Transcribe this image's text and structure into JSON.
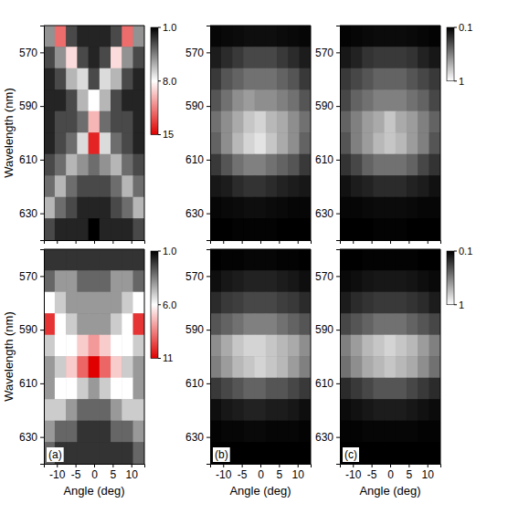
{
  "chart_data": [
    {
      "type": "heatmap",
      "ylabel": "Wavelength (nm)",
      "tick_labels": "y",
      "x": [
        -12,
        -9,
        -6,
        -3,
        0,
        3,
        6,
        9,
        12
      ],
      "y": [
        564,
        572,
        580,
        588,
        596,
        604,
        612,
        620,
        628,
        636
      ],
      "xlim": [
        -13.5,
        13.5
      ],
      "ylim": [
        560,
        640
      ],
      "xticks": [
        -10,
        -5,
        0,
        5,
        10
      ],
      "yticks": [
        570,
        590,
        610,
        630
      ],
      "values": [
        [
          5,
          12,
          3,
          2,
          2,
          2,
          3,
          12,
          5
        ],
        [
          3,
          5,
          9,
          3,
          2,
          3,
          9,
          5,
          3
        ],
        [
          2,
          3,
          6,
          7,
          3,
          7,
          6,
          3,
          2
        ],
        [
          2,
          2,
          3,
          6,
          8,
          6,
          3,
          2,
          2
        ],
        [
          2,
          3,
          3,
          4,
          10,
          4,
          3,
          3,
          2
        ],
        [
          2,
          3,
          4,
          7,
          14,
          7,
          4,
          3,
          2
        ],
        [
          3,
          4,
          6,
          5,
          4,
          5,
          6,
          4,
          3
        ],
        [
          4,
          6,
          4,
          3,
          3,
          3,
          4,
          6,
          4
        ],
        [
          6,
          4,
          3,
          2,
          2,
          2,
          3,
          4,
          6
        ],
        [
          3,
          2,
          2,
          2,
          1,
          2,
          2,
          2,
          3
        ]
      ],
      "colorbar": {
        "range": [
          1,
          15
        ],
        "ticks": [
          {
            "value": 1,
            "label": "1.0"
          },
          {
            "value": 8,
            "label": "8.0"
          },
          15
        ]
      }
    },
    {
      "type": "heatmap",
      "tick_labels": "y",
      "x": [
        -12,
        -9,
        -6,
        -3,
        0,
        3,
        6,
        9,
        12
      ],
      "y": [
        564,
        572,
        580,
        588,
        596,
        604,
        612,
        620,
        628,
        636
      ],
      "xlim": [
        -13.5,
        13.5
      ],
      "ylim": [
        560,
        640
      ],
      "xticks": [
        -10,
        -5,
        0,
        5,
        10
      ],
      "yticks": [
        570,
        590,
        610,
        630
      ],
      "values": [
        [
          0.12,
          0.13,
          0.14,
          0.15,
          0.15,
          0.15,
          0.14,
          0.13,
          0.12
        ],
        [
          0.2,
          0.25,
          0.3,
          0.35,
          0.35,
          0.35,
          0.3,
          0.25,
          0.2
        ],
        [
          0.3,
          0.4,
          0.45,
          0.5,
          0.5,
          0.5,
          0.45,
          0.4,
          0.3
        ],
        [
          0.4,
          0.5,
          0.6,
          0.65,
          0.6,
          0.6,
          0.55,
          0.5,
          0.4
        ],
        [
          0.5,
          0.6,
          0.7,
          0.8,
          0.85,
          0.75,
          0.7,
          0.6,
          0.5
        ],
        [
          0.45,
          0.6,
          0.75,
          0.85,
          0.9,
          0.8,
          0.7,
          0.6,
          0.45
        ],
        [
          0.3,
          0.4,
          0.5,
          0.55,
          0.55,
          0.5,
          0.45,
          0.4,
          0.3
        ],
        [
          0.18,
          0.2,
          0.25,
          0.28,
          0.28,
          0.25,
          0.22,
          0.2,
          0.18
        ],
        [
          0.12,
          0.13,
          0.14,
          0.15,
          0.15,
          0.14,
          0.13,
          0.12,
          0.12
        ],
        [
          0.1,
          0.1,
          0.11,
          0.11,
          0.11,
          0.11,
          0.1,
          0.1,
          0.1
        ]
      ]
    },
    {
      "type": "heatmap",
      "tick_labels": "y",
      "x": [
        -12,
        -9,
        -6,
        -3,
        0,
        3,
        6,
        9,
        12
      ],
      "y": [
        564,
        572,
        580,
        588,
        596,
        604,
        612,
        620,
        628,
        636
      ],
      "xlim": [
        -13.5,
        13.5
      ],
      "ylim": [
        560,
        640
      ],
      "xticks": [
        -10,
        -5,
        0,
        5,
        10
      ],
      "yticks": [
        570,
        590,
        610,
        630
      ],
      "values": [
        [
          0.11,
          0.12,
          0.13,
          0.14,
          0.14,
          0.14,
          0.13,
          0.12,
          0.11
        ],
        [
          0.18,
          0.22,
          0.28,
          0.3,
          0.3,
          0.3,
          0.28,
          0.22,
          0.18
        ],
        [
          0.3,
          0.35,
          0.4,
          0.45,
          0.45,
          0.45,
          0.4,
          0.35,
          0.3
        ],
        [
          0.35,
          0.45,
          0.5,
          0.55,
          0.55,
          0.55,
          0.5,
          0.45,
          0.35
        ],
        [
          0.45,
          0.55,
          0.65,
          0.7,
          0.8,
          0.7,
          0.65,
          0.55,
          0.45
        ],
        [
          0.4,
          0.55,
          0.65,
          0.75,
          0.8,
          0.75,
          0.65,
          0.55,
          0.4
        ],
        [
          0.28,
          0.35,
          0.45,
          0.5,
          0.5,
          0.5,
          0.45,
          0.35,
          0.28
        ],
        [
          0.16,
          0.2,
          0.22,
          0.25,
          0.25,
          0.25,
          0.22,
          0.2,
          0.16
        ],
        [
          0.12,
          0.12,
          0.13,
          0.14,
          0.14,
          0.14,
          0.13,
          0.12,
          0.12
        ],
        [
          0.1,
          0.1,
          0.1,
          0.11,
          0.11,
          0.11,
          0.1,
          0.1,
          0.1
        ]
      ],
      "colorbar": {
        "range": [
          0.1,
          1
        ],
        "ticks": [
          0.1,
          1
        ]
      }
    },
    {
      "type": "heatmap",
      "ylabel": "Wavelength (nm)",
      "xlabel": "Angle (deg)",
      "panel_label": "(a)",
      "x": [
        -12,
        -9,
        -6,
        -3,
        0,
        3,
        6,
        9,
        12
      ],
      "y": [
        564,
        572,
        580,
        588,
        596,
        604,
        612,
        620,
        628,
        636
      ],
      "xlim": [
        -13.5,
        13.5
      ],
      "ylim": [
        560,
        640
      ],
      "xticks": [
        -10,
        -5,
        0,
        5,
        10
      ],
      "yticks": [
        570,
        590,
        610,
        630
      ],
      "values": [
        [
          2,
          2,
          2,
          2,
          2,
          2,
          2,
          2,
          2
        ],
        [
          3,
          4,
          4,
          3,
          3,
          3,
          4,
          4,
          3
        ],
        [
          6,
          5,
          4,
          4,
          4,
          4,
          4,
          5,
          6
        ],
        [
          10,
          6,
          5,
          4,
          4,
          4,
          5,
          6,
          10
        ],
        [
          5,
          6,
          6,
          7,
          8,
          7,
          6,
          6,
          5
        ],
        [
          4,
          5,
          7,
          9,
          11,
          9,
          7,
          5,
          4
        ],
        [
          4,
          6,
          6,
          5,
          4,
          5,
          6,
          6,
          4
        ],
        [
          5,
          5,
          4,
          3,
          3,
          3,
          4,
          5,
          5
        ],
        [
          4,
          3,
          3,
          2,
          2,
          2,
          3,
          3,
          4
        ],
        [
          3,
          2,
          2,
          2,
          2,
          2,
          2,
          2,
          3
        ]
      ],
      "colorbar": {
        "range": [
          1,
          11
        ],
        "ticks": [
          {
            "value": 1,
            "label": "1.0"
          },
          {
            "value": 6,
            "label": "6.0"
          },
          11
        ]
      }
    },
    {
      "type": "heatmap",
      "xlabel": "Angle (deg)",
      "panel_label": "(b)",
      "x": [
        -12,
        -9,
        -6,
        -3,
        0,
        3,
        6,
        9,
        12
      ],
      "y": [
        564,
        572,
        580,
        588,
        596,
        604,
        612,
        620,
        628,
        636
      ],
      "xlim": [
        -13.5,
        13.5
      ],
      "ylim": [
        560,
        640
      ],
      "xticks": [
        -10,
        -5,
        0,
        5,
        10
      ],
      "yticks": [
        570,
        590,
        610,
        630
      ],
      "values": [
        [
          0.1,
          0.11,
          0.11,
          0.12,
          0.12,
          0.12,
          0.11,
          0.11,
          0.1
        ],
        [
          0.15,
          0.18,
          0.2,
          0.22,
          0.22,
          0.22,
          0.2,
          0.18,
          0.15
        ],
        [
          0.25,
          0.3,
          0.32,
          0.35,
          0.35,
          0.35,
          0.32,
          0.3,
          0.25
        ],
        [
          0.4,
          0.45,
          0.5,
          0.55,
          0.55,
          0.55,
          0.5,
          0.45,
          0.4
        ],
        [
          0.6,
          0.7,
          0.8,
          0.85,
          0.85,
          0.8,
          0.75,
          0.7,
          0.6
        ],
        [
          0.55,
          0.65,
          0.75,
          0.8,
          0.85,
          0.8,
          0.75,
          0.65,
          0.55
        ],
        [
          0.3,
          0.35,
          0.4,
          0.45,
          0.45,
          0.4,
          0.4,
          0.35,
          0.3
        ],
        [
          0.15,
          0.18,
          0.2,
          0.22,
          0.22,
          0.2,
          0.2,
          0.18,
          0.15
        ],
        [
          0.11,
          0.12,
          0.12,
          0.13,
          0.13,
          0.12,
          0.12,
          0.12,
          0.11
        ],
        [
          0.1,
          0.1,
          0.1,
          0.1,
          0.1,
          0.1,
          0.1,
          0.1,
          0.1
        ]
      ]
    },
    {
      "type": "heatmap",
      "xlabel": "Angle (deg)",
      "panel_label": "(c)",
      "x": [
        -12,
        -9,
        -6,
        -3,
        0,
        3,
        6,
        9,
        12
      ],
      "y": [
        564,
        572,
        580,
        588,
        596,
        604,
        612,
        620,
        628,
        636
      ],
      "xlim": [
        -13.5,
        13.5
      ],
      "ylim": [
        560,
        640
      ],
      "xticks": [
        -10,
        -5,
        0,
        5,
        10
      ],
      "yticks": [
        570,
        590,
        610,
        630
      ],
      "values": [
        [
          0.1,
          0.1,
          0.11,
          0.11,
          0.11,
          0.11,
          0.11,
          0.1,
          0.1
        ],
        [
          0.13,
          0.15,
          0.17,
          0.18,
          0.18,
          0.18,
          0.17,
          0.15,
          0.13
        ],
        [
          0.2,
          0.25,
          0.28,
          0.3,
          0.3,
          0.3,
          0.28,
          0.25,
          0.2
        ],
        [
          0.35,
          0.4,
          0.45,
          0.5,
          0.5,
          0.5,
          0.45,
          0.4,
          0.35
        ],
        [
          0.55,
          0.65,
          0.75,
          0.8,
          0.85,
          0.8,
          0.75,
          0.65,
          0.55
        ],
        [
          0.5,
          0.6,
          0.7,
          0.75,
          0.8,
          0.75,
          0.7,
          0.6,
          0.5
        ],
        [
          0.25,
          0.3,
          0.35,
          0.4,
          0.4,
          0.4,
          0.35,
          0.3,
          0.25
        ],
        [
          0.14,
          0.16,
          0.18,
          0.2,
          0.2,
          0.2,
          0.18,
          0.16,
          0.14
        ],
        [
          0.11,
          0.11,
          0.12,
          0.12,
          0.12,
          0.12,
          0.12,
          0.11,
          0.11
        ],
        [
          0.1,
          0.1,
          0.1,
          0.1,
          0.1,
          0.1,
          0.1,
          0.1,
          0.1
        ]
      ],
      "colorbar": {
        "range": [
          0.1,
          1
        ],
        "ticks": [
          0.1,
          1
        ]
      }
    }
  ]
}
